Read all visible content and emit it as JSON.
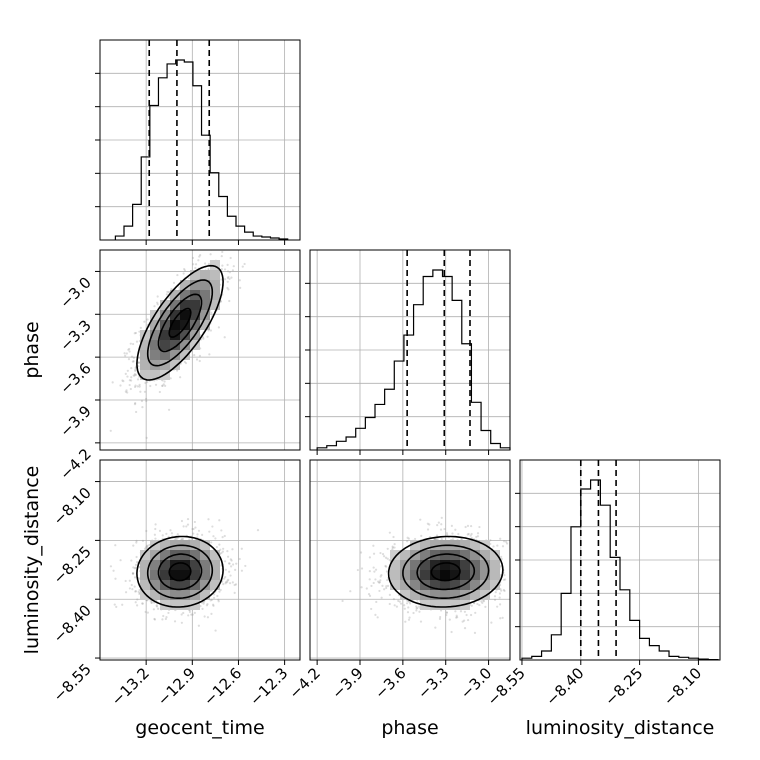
{
  "chart_data": {
    "type": "corner",
    "parameters": [
      "geocent_time",
      "phase",
      "luminosity_distance"
    ],
    "labels": {
      "geocent_time": "geocent_time",
      "phase": "phase",
      "luminosity_distance": "luminosity_distance"
    },
    "ranges": {
      "geocent_time": [
        -13.5,
        -12.2
      ],
      "phase": [
        -4.25,
        -2.85
      ],
      "luminosity_distance": [
        -8.555,
        -8.045
      ]
    },
    "ticks": {
      "geocent_time": [
        -13.2,
        -12.9,
        -12.6,
        -12.3
      ],
      "phase": [
        -4.2,
        -3.9,
        -3.6,
        -3.3,
        -3.0
      ],
      "luminosity_distance": [
        -8.55,
        -8.4,
        -8.25,
        -8.1
      ]
    },
    "tick_labels": {
      "geocent_time": [
        "−13.2",
        "−12.9",
        "−12.6",
        "−12.3"
      ],
      "phase": [
        "−4.2",
        "−3.9",
        "−3.6",
        "−3.3",
        "−3.0"
      ],
      "luminosity_distance": [
        "−8.55",
        "−8.40",
        "−8.25",
        "−8.10"
      ]
    },
    "quantiles": {
      "geocent_time": [
        -13.18,
        -13.0,
        -12.79
      ],
      "phase": [
        -3.57,
        -3.31,
        -3.13
      ],
      "luminosity_distance": [
        -8.4,
        -8.355,
        -8.31
      ]
    },
    "histograms": {
      "geocent_time": {
        "edges_range": [
          -13.4,
          -12.28
        ],
        "bins": 20,
        "counts": [
          0.02,
          0.07,
          0.18,
          0.42,
          0.68,
          0.82,
          0.89,
          0.91,
          0.9,
          0.78,
          0.53,
          0.34,
          0.22,
          0.12,
          0.07,
          0.04,
          0.02,
          0.015,
          0.01,
          0.005
        ]
      },
      "phase": {
        "edges_range": [
          -4.2,
          -2.85
        ],
        "bins": 20,
        "counts": [
          0.01,
          0.02,
          0.04,
          0.06,
          0.1,
          0.15,
          0.21,
          0.28,
          0.41,
          0.53,
          0.67,
          0.8,
          0.83,
          0.8,
          0.69,
          0.49,
          0.22,
          0.09,
          0.03,
          0.01
        ]
      },
      "luminosity_distance": {
        "edges_range": [
          -8.55,
          -8.05
        ],
        "bins": 20,
        "counts": [
          0.01,
          0.02,
          0.05,
          0.14,
          0.37,
          0.74,
          0.95,
          1.0,
          0.86,
          0.57,
          0.39,
          0.22,
          0.12,
          0.08,
          0.05,
          0.02,
          0.015,
          0.01,
          0.005,
          0.002
        ]
      }
    },
    "joint": [
      {
        "x": "geocent_time",
        "y": "phase",
        "mean": [
          -12.98,
          -3.36
        ],
        "std": [
          0.14,
          0.2
        ],
        "corr": 0.72
      },
      {
        "x": "geocent_time",
        "y": "luminosity_distance",
        "mean": [
          -12.98,
          -8.33
        ],
        "std": [
          0.14,
          0.045
        ],
        "corr": 0.05
      },
      {
        "x": "phase",
        "y": "luminosity_distance",
        "mean": [
          -3.3,
          -8.33
        ],
        "std": [
          0.2,
          0.045
        ],
        "corr": 0.05
      }
    ],
    "grid": true,
    "colors": {
      "line": "#000000",
      "scatter": "#9e9e9e",
      "grid": "#b0b0b0"
    }
  }
}
